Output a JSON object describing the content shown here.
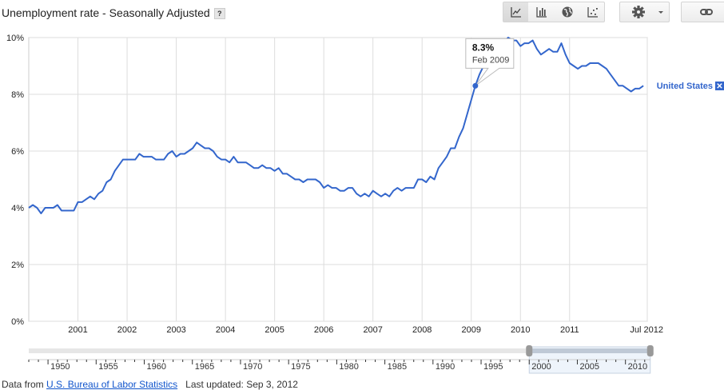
{
  "header": {
    "title": "Unemployment rate - Seasonally Adjusted",
    "help_label": "?"
  },
  "toolbar": {
    "chart_types": [
      {
        "name": "line-chart-icon",
        "active": true
      },
      {
        "name": "bar-chart-icon",
        "active": false
      },
      {
        "name": "map-icon",
        "active": false
      },
      {
        "name": "scatter-chart-icon",
        "active": false
      }
    ],
    "settings_icon": "gear-icon",
    "dropdown_icon": "caret-down-icon",
    "link_icon": "link-icon"
  },
  "chart_data": {
    "type": "line",
    "title": "Unemployment rate - Seasonally Adjusted",
    "ylim": [
      0,
      10
    ],
    "yticks": [
      "0%",
      "2%",
      "4%",
      "6%",
      "8%",
      "10%"
    ],
    "xlim": [
      2000,
      2012.58
    ],
    "xticks": [
      "2001",
      "2002",
      "2003",
      "2004",
      "2005",
      "2006",
      "2007",
      "2008",
      "2009",
      "2010",
      "2011",
      "Jul 2012"
    ],
    "x": [
      2000.0,
      2000.083,
      2000.167,
      2000.25,
      2000.333,
      2000.417,
      2000.5,
      2000.583,
      2000.667,
      2000.75,
      2000.833,
      2000.917,
      2001.0,
      2001.083,
      2001.167,
      2001.25,
      2001.333,
      2001.417,
      2001.5,
      2001.583,
      2001.667,
      2001.75,
      2001.833,
      2001.917,
      2002.0,
      2002.083,
      2002.167,
      2002.25,
      2002.333,
      2002.417,
      2002.5,
      2002.583,
      2002.667,
      2002.75,
      2002.833,
      2002.917,
      2003.0,
      2003.083,
      2003.167,
      2003.25,
      2003.333,
      2003.417,
      2003.5,
      2003.583,
      2003.667,
      2003.75,
      2003.833,
      2003.917,
      2004.0,
      2004.083,
      2004.167,
      2004.25,
      2004.333,
      2004.417,
      2004.5,
      2004.583,
      2004.667,
      2004.75,
      2004.833,
      2004.917,
      2005.0,
      2005.083,
      2005.167,
      2005.25,
      2005.333,
      2005.417,
      2005.5,
      2005.583,
      2005.667,
      2005.75,
      2005.833,
      2005.917,
      2006.0,
      2006.083,
      2006.167,
      2006.25,
      2006.333,
      2006.417,
      2006.5,
      2006.583,
      2006.667,
      2006.75,
      2006.833,
      2006.917,
      2007.0,
      2007.083,
      2007.167,
      2007.25,
      2007.333,
      2007.417,
      2007.5,
      2007.583,
      2007.667,
      2007.75,
      2007.833,
      2007.917,
      2008.0,
      2008.083,
      2008.167,
      2008.25,
      2008.333,
      2008.417,
      2008.5,
      2008.583,
      2008.667,
      2008.75,
      2008.833,
      2008.917,
      2009.0,
      2009.083,
      2009.167,
      2009.25,
      2009.333,
      2009.417,
      2009.5,
      2009.583,
      2009.667,
      2009.75,
      2009.833,
      2009.917,
      2010.0,
      2010.083,
      2010.167,
      2010.25,
      2010.333,
      2010.417,
      2010.5,
      2010.583,
      2010.667,
      2010.75,
      2010.833,
      2010.917,
      2011.0,
      2011.083,
      2011.167,
      2011.25,
      2011.333,
      2011.417,
      2011.5,
      2011.583,
      2011.667,
      2011.75,
      2011.833,
      2011.917,
      2012.0,
      2012.083,
      2012.167,
      2012.25,
      2012.333,
      2012.417,
      2012.5
    ],
    "series": [
      {
        "name": "United States",
        "color": "#3366cc",
        "values": [
          4.0,
          4.1,
          4.0,
          3.8,
          4.0,
          4.0,
          4.0,
          4.1,
          3.9,
          3.9,
          3.9,
          3.9,
          4.2,
          4.2,
          4.3,
          4.4,
          4.3,
          4.5,
          4.6,
          4.9,
          5.0,
          5.3,
          5.5,
          5.7,
          5.7,
          5.7,
          5.7,
          5.9,
          5.8,
          5.8,
          5.8,
          5.7,
          5.7,
          5.7,
          5.9,
          6.0,
          5.8,
          5.9,
          5.9,
          6.0,
          6.1,
          6.3,
          6.2,
          6.1,
          6.1,
          6.0,
          5.8,
          5.7,
          5.7,
          5.6,
          5.8,
          5.6,
          5.6,
          5.6,
          5.5,
          5.4,
          5.4,
          5.5,
          5.4,
          5.4,
          5.3,
          5.4,
          5.2,
          5.2,
          5.1,
          5.0,
          5.0,
          4.9,
          5.0,
          5.0,
          5.0,
          4.9,
          4.7,
          4.8,
          4.7,
          4.7,
          4.6,
          4.6,
          4.7,
          4.7,
          4.5,
          4.4,
          4.5,
          4.4,
          4.6,
          4.5,
          4.4,
          4.5,
          4.4,
          4.6,
          4.7,
          4.6,
          4.7,
          4.7,
          4.7,
          5.0,
          5.0,
          4.9,
          5.1,
          5.0,
          5.4,
          5.6,
          5.8,
          6.1,
          6.1,
          6.5,
          6.8,
          7.3,
          7.8,
          8.3,
          8.7,
          9.0,
          9.4,
          9.5,
          9.5,
          9.6,
          9.8,
          10.0,
          9.9,
          9.9,
          9.7,
          9.8,
          9.8,
          9.9,
          9.6,
          9.4,
          9.5,
          9.6,
          9.5,
          9.5,
          9.8,
          9.4,
          9.1,
          9.0,
          8.9,
          9.0,
          9.0,
          9.1,
          9.1,
          9.1,
          9.0,
          8.9,
          8.7,
          8.5,
          8.3,
          8.3,
          8.2,
          8.1,
          8.2,
          8.2,
          8.3
        ]
      }
    ],
    "legend_position": "right",
    "grid": true,
    "tooltip": {
      "value": "8.3%",
      "date": "Feb 2009",
      "index": 109
    },
    "legend_close_label": "✕"
  },
  "range_selector": {
    "labels": [
      "1950",
      "1955",
      "1960",
      "1965",
      "1970",
      "1975",
      "1980",
      "1985",
      "1990",
      "1995",
      "2000",
      "2005",
      "2010"
    ],
    "range": [
      1948,
      2012.6
    ],
    "selected": [
      2000,
      2012.58
    ]
  },
  "footer": {
    "prefix": "Data from",
    "source": "U.S. Bureau of Labor Statistics",
    "updated": "Last updated: Sep 3, 2012"
  }
}
